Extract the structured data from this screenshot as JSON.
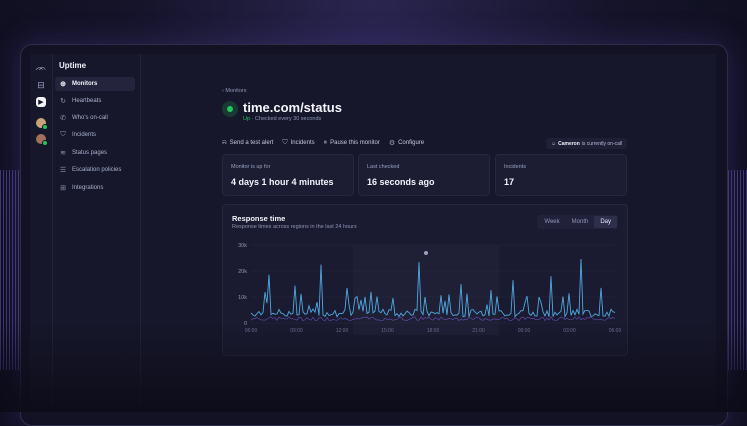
{
  "sidebar": {
    "app_title": "Uptime",
    "items": [
      {
        "label": "Monitors",
        "icon": "globe-icon",
        "active": true
      },
      {
        "label": "Heartbeats",
        "icon": "refresh-icon",
        "active": false
      },
      {
        "label": "Who's on-call",
        "icon": "phone-icon",
        "active": false
      },
      {
        "label": "Incidents",
        "icon": "shield-icon",
        "active": false
      },
      {
        "label": "Status pages",
        "icon": "signal-icon",
        "active": false
      },
      {
        "label": "Escalation policies",
        "icon": "sliders-icon",
        "active": false
      },
      {
        "label": "Integrations",
        "icon": "grid-icon",
        "active": false
      }
    ]
  },
  "header": {
    "breadcrumb": "Monitors",
    "title": "time.com/status",
    "status": "Up",
    "check_text": "· Checked every 30 seconds",
    "status_color": "#22c55e"
  },
  "actions": [
    {
      "label": "Send a test alert",
      "icon": "bell-icon"
    },
    {
      "label": "Incidents",
      "icon": "shield-icon"
    },
    {
      "label": "Pause this monitor",
      "icon": "pause-icon"
    },
    {
      "label": "Configure",
      "icon": "gear-icon"
    }
  ],
  "oncall": {
    "name": "Cameron",
    "text": "is currently on-call"
  },
  "cards": [
    {
      "label": "Monitor is up for",
      "value": "4 days 1 hour 4 minutes"
    },
    {
      "label": "Last checked",
      "value": "16 seconds ago"
    },
    {
      "label": "Incidents",
      "value": "17"
    }
  ],
  "chart": {
    "title": "Response time",
    "subtitle": "Response times across regions in the last 24 hours",
    "ranges": [
      "Week",
      "Month",
      "Day"
    ],
    "selected_range": "Day",
    "y_ticks": [
      "30k",
      "20k",
      "10k",
      "0"
    ],
    "x_ticks": [
      "06:00",
      "09:00",
      "12:00",
      "15:00",
      "18:00",
      "21:00",
      "00:00",
      "03:00",
      "06:00"
    ],
    "line_color": "#4fa8e0"
  }
}
